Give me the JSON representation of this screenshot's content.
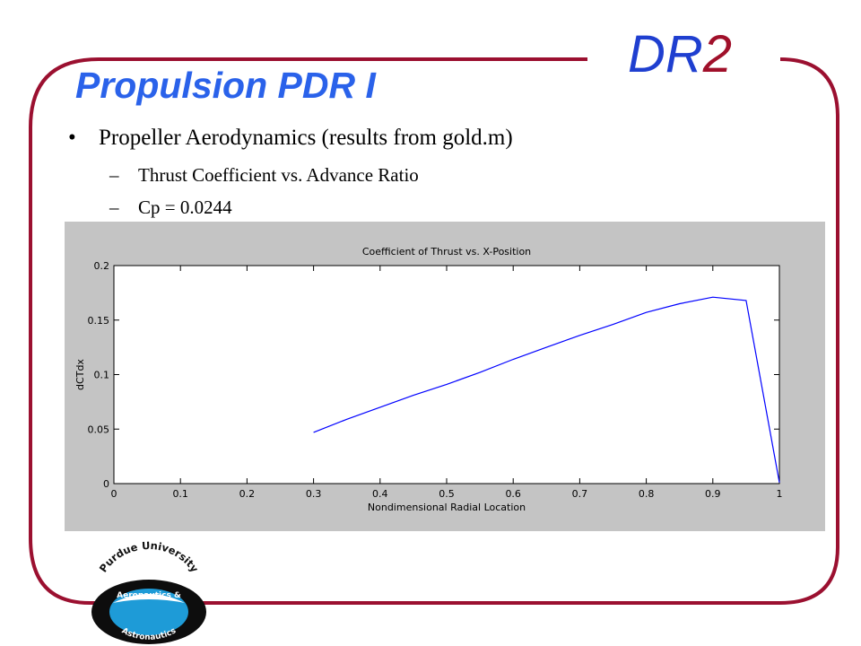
{
  "slide": {
    "brand_main": "DR",
    "brand_number": "2",
    "title": "Propulsion PDR I",
    "bullet": "Propeller Aerodynamics  (results from gold.m)",
    "bullet_marker": "•",
    "sub_marker": "–",
    "sub_items": [
      "Thrust Coefficient vs. Advance Ratio",
      "Cp = 0.0244"
    ],
    "frame_color": "#9b1030",
    "title_color": "#2a62ea"
  },
  "logo": {
    "top_text": "Purdue University",
    "middle_text": "Aeronautics &",
    "bottom_text": "Astronautics",
    "ring_color": "#0d0d0d",
    "sky_color": "#1e9bd7"
  },
  "chart_data": {
    "type": "line",
    "title": "Coefficient of Thrust vs. X-Position",
    "xlabel": "Nondimensional Radial Location",
    "ylabel": "dCTdx",
    "xlim": [
      0,
      1
    ],
    "ylim": [
      0,
      0.2
    ],
    "xticks": [
      "0",
      "0.1",
      "0.2",
      "0.3",
      "0.4",
      "0.5",
      "0.6",
      "0.7",
      "0.8",
      "0.9",
      "1"
    ],
    "yticks": [
      "0",
      "0.05",
      "0.1",
      "0.15",
      "0.2"
    ],
    "grid": false,
    "series": [
      {
        "color": "#0000ff",
        "x": [
          0.3,
          0.35,
          0.4,
          0.45,
          0.5,
          0.55,
          0.6,
          0.65,
          0.7,
          0.75,
          0.8,
          0.85,
          0.9,
          0.95,
          1.0
        ],
        "y": [
          0.047,
          0.059,
          0.07,
          0.081,
          0.091,
          0.102,
          0.114,
          0.125,
          0.136,
          0.146,
          0.157,
          0.165,
          0.171,
          0.168,
          0.001
        ]
      }
    ]
  }
}
